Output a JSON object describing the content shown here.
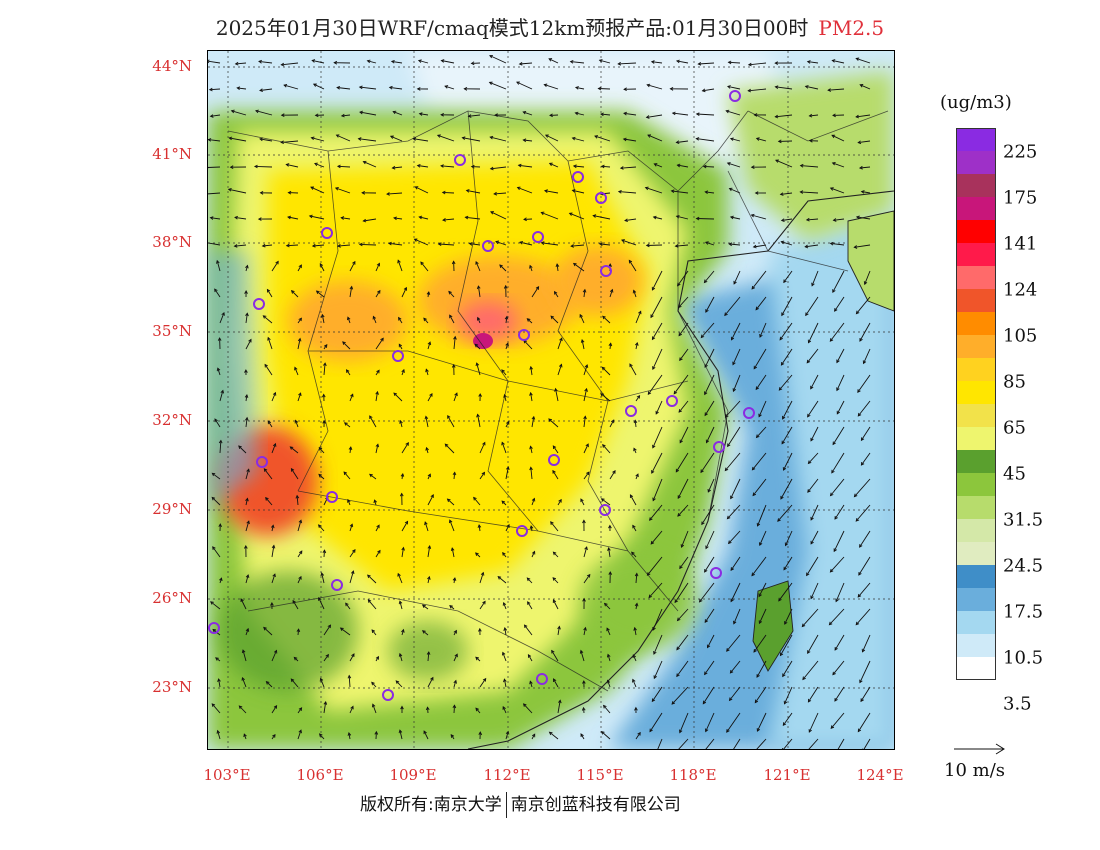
{
  "title": {
    "main": "2025年01月30日WRF/cmaq模式12km预报产品:01月30日00时",
    "variable": "PM2.5"
  },
  "map": {
    "lat_labels": [
      "44°N",
      "41°N",
      "38°N",
      "35°N",
      "32°N",
      "29°N",
      "26°N",
      "23°N"
    ],
    "lon_labels": [
      "103°E",
      "106°E",
      "109°E",
      "112°E",
      "115°E",
      "118°E",
      "121°E",
      "124°E"
    ],
    "city_marker_color": "#8a2be2"
  },
  "legend": {
    "unit": "(ug/m3)",
    "labels": [
      "225",
      "175",
      "141",
      "124",
      "105",
      "85",
      "65",
      "45",
      "31.5",
      "24.5",
      "17.5",
      "10.5",
      "3.5"
    ],
    "colors": [
      "#8a2be2",
      "#9e30c8",
      "#a8325c",
      "#c8167a",
      "#ff0000",
      "#ff1a4a",
      "#ff6a6a",
      "#f0552a",
      "#ff8c00",
      "#ffae2a",
      "#ffd21f",
      "#ffe600",
      "#f2e24a",
      "#eef56e",
      "#5aa02e",
      "#8cc63c",
      "#b7dc6c",
      "#d4e8a8",
      "#e0ecc0",
      "#3f8ec8",
      "#6aaedc",
      "#a4d8f0",
      "#cfeaf8",
      "#ffffff"
    ],
    "reference_wind": "10 m/s"
  },
  "footer": {
    "copyright_left": "版权所有:南京大学",
    "copyright_right": "南京创蓝科技有限公司"
  }
}
